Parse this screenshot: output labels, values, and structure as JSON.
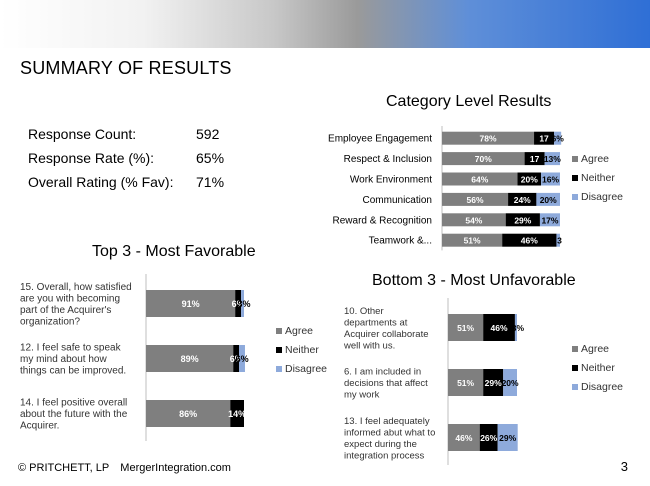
{
  "slide": {
    "title": "SUMMARY OF RESULTS",
    "footer_copyright": "© PRITCHETT, LP",
    "footer_site": "MergerIntegration.com",
    "page_number": "3"
  },
  "metrics": [
    {
      "label": "Response Count:",
      "value": "592"
    },
    {
      "label": "Response Rate (%):",
      "value": "65%"
    },
    {
      "label": "Overall Rating (% Fav):",
      "value": "71%"
    }
  ],
  "colors": {
    "agree": "#7f7f7f",
    "neither": "#000000",
    "disagree": "#8eaadb"
  },
  "chart_data": [
    {
      "type": "bar",
      "orientation": "horizontal",
      "stacked": true,
      "title": "Category Level Results",
      "categories": [
        "Employee Engagement",
        "Respect & Inclusion",
        "Work Environment",
        "Communication",
        "Reward & Recognition",
        "Teamwork &..."
      ],
      "series": [
        {
          "name": "Agree",
          "values": [
            78,
            70,
            64,
            56,
            54,
            51
          ],
          "labels": [
            "78%",
            "70%",
            "64%",
            "56%",
            "54%",
            "51%"
          ]
        },
        {
          "name": "Neither",
          "values": [
            17,
            17,
            20,
            24,
            29,
            46
          ],
          "labels": [
            "17",
            "17",
            "20%",
            "24%",
            "29%",
            "46%"
          ]
        },
        {
          "name": "Disagree",
          "values": [
            6,
            13,
            16,
            20,
            17,
            3
          ],
          "labels": [
            "6%",
            "13%",
            "16%",
            "20%",
            "17%",
            "3"
          ]
        }
      ],
      "legend": "right"
    },
    {
      "type": "bar",
      "orientation": "horizontal",
      "stacked": true,
      "title": "Top 3 - Most Favorable",
      "categories": [
        "15. Overall, how satisfied are you with becoming part of the Acquirer's organization?",
        "12. I feel safe to speak my mind about how things can be improved.",
        "14. I feel positive overall about the future with the Acquirer."
      ],
      "category_lines": [
        [
          "15. Overall, how satisfied",
          "are you with becoming",
          "part of the Acquirer's",
          "organization?"
        ],
        [
          "12. I feel safe to speak",
          "my mind about how",
          "things can be improved."
        ],
        [
          "14. I feel positive overall",
          "about the future with the",
          "Acquirer."
        ]
      ],
      "series": [
        {
          "name": "Agree",
          "values": [
            91,
            89,
            86
          ],
          "labels": [
            "91%",
            "89%",
            "86%"
          ]
        },
        {
          "name": "Neither",
          "values": [
            6,
            6,
            14
          ],
          "labels": [
            "6%",
            "6%",
            "14%"
          ]
        },
        {
          "name": "Disagree",
          "values": [
            3,
            6,
            0
          ],
          "labels": [
            "3%",
            "6%",
            ""
          ]
        }
      ],
      "legend": "right"
    },
    {
      "type": "bar",
      "orientation": "horizontal",
      "stacked": true,
      "title": "Bottom 3 - Most Unfavorable",
      "categories": [
        "10. Other departments at Acquirer collaborate well with us.",
        "6. I am included in decisions that affect my work",
        "13. I feel adequately informed abut what to expect during the integration process"
      ],
      "category_lines": [
        [
          "10. Other",
          "departments at",
          "Acquirer collaborate",
          "well with us."
        ],
        [
          "6. I am included in",
          "decisions that affect",
          "my work"
        ],
        [
          "13. I feel adequately",
          "informed abut what to",
          "expect during the",
          "integration process"
        ]
      ],
      "series": [
        {
          "name": "Agree",
          "values": [
            51,
            51,
            46
          ],
          "labels": [
            "51%",
            "51%",
            "46%"
          ]
        },
        {
          "name": "Neither",
          "values": [
            46,
            29,
            26
          ],
          "labels": [
            "46%",
            "29%",
            "26%"
          ]
        },
        {
          "name": "Disagree",
          "values": [
            3,
            20,
            29
          ],
          "labels": [
            "3%",
            "20%",
            "29%"
          ]
        }
      ],
      "legend": "right"
    }
  ]
}
